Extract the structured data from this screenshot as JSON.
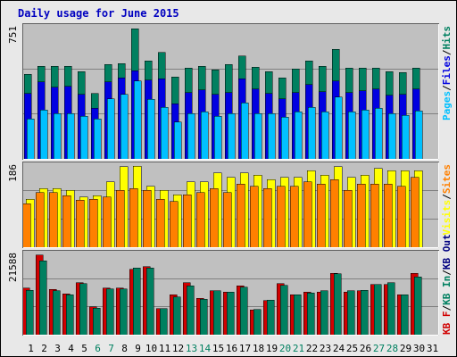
{
  "title": "Daily usage for June 2015",
  "colors": {
    "pages": "#00c0ff",
    "files": "#0000e0",
    "hits": "#008060",
    "visits": "#ffff00",
    "sites": "#ff8000",
    "kb_in": "#008060",
    "kb_out": "#d00000",
    "weekend_label": "#008060",
    "weekday_label": "#000000",
    "legend_sep": "#000000"
  },
  "chart_data": [
    {
      "type": "bar",
      "name": "hits-files-pages",
      "ymax_label": "751",
      "ylim": [
        0,
        751
      ],
      "x": [
        1,
        2,
        3,
        4,
        5,
        6,
        7,
        8,
        9,
        10,
        11,
        12,
        13,
        14,
        15,
        16,
        17,
        18,
        19,
        20,
        21,
        22,
        23,
        24,
        25,
        26,
        27,
        28,
        29,
        30,
        31
      ],
      "series": [
        {
          "name": "Hits",
          "values": [
            485,
            530,
            530,
            530,
            500,
            375,
            540,
            545,
            745,
            560,
            610,
            470,
            520,
            530,
            510,
            540,
            590,
            525,
            500,
            465,
            515,
            560,
            530,
            627,
            520,
            520,
            520,
            500,
            495,
            520,
            0
          ]
        },
        {
          "name": "Files",
          "values": [
            375,
            440,
            410,
            415,
            370,
            290,
            440,
            465,
            505,
            450,
            460,
            315,
            380,
            395,
            370,
            380,
            460,
            400,
            375,
            345,
            380,
            425,
            385,
            445,
            380,
            390,
            400,
            365,
            370,
            400,
            0
          ]
        },
        {
          "name": "Pages",
          "values": [
            230,
            280,
            260,
            260,
            245,
            230,
            345,
            370,
            445,
            340,
            295,
            210,
            260,
            270,
            245,
            260,
            320,
            260,
            260,
            240,
            270,
            295,
            270,
            355,
            270,
            280,
            290,
            260,
            250,
            275,
            0
          ]
        }
      ],
      "legend": [
        {
          "label": "Pages",
          "color": "#00c0ff"
        },
        {
          "label": "Files",
          "color": "#0000e0"
        },
        {
          "label": "Hits",
          "color": "#008060"
        }
      ]
    },
    {
      "type": "bar",
      "name": "visits-sites",
      "ymax_label": "186",
      "ylim": [
        0,
        186
      ],
      "x": [
        1,
        2,
        3,
        4,
        5,
        6,
        7,
        8,
        9,
        10,
        11,
        12,
        13,
        14,
        15,
        16,
        17,
        18,
        19,
        20,
        21,
        22,
        23,
        24,
        25,
        26,
        27,
        28,
        29,
        30,
        31
      ],
      "series": [
        {
          "name": "Visits",
          "values": [
            110,
            135,
            135,
            130,
            115,
            118,
            150,
            185,
            186,
            140,
            130,
            120,
            150,
            150,
            170,
            160,
            170,
            165,
            155,
            160,
            160,
            175,
            165,
            185,
            160,
            165,
            180,
            175,
            175,
            175,
            0
          ]
        },
        {
          "name": "Sites",
          "values": [
            100,
            125,
            125,
            118,
            108,
            110,
            115,
            130,
            135,
            130,
            110,
            105,
            120,
            125,
            135,
            125,
            145,
            140,
            135,
            140,
            140,
            150,
            145,
            155,
            130,
            145,
            145,
            145,
            140,
            160,
            0
          ]
        }
      ],
      "legend": [
        {
          "label": "Visits",
          "color": "#ffff00"
        },
        {
          "label": "Sites",
          "color": "#ff8000"
        }
      ]
    },
    {
      "type": "bar",
      "name": "kbf-kbin-kbout",
      "ymax_label": "21588",
      "ylim": [
        0,
        21588
      ],
      "x": [
        1,
        2,
        3,
        4,
        5,
        6,
        7,
        8,
        9,
        10,
        11,
        12,
        13,
        14,
        15,
        16,
        17,
        18,
        19,
        20,
        21,
        22,
        23,
        24,
        25,
        26,
        27,
        28,
        29,
        30,
        31
      ],
      "series": [
        {
          "name": "KB F",
          "values": [
            12500,
            21400,
            12200,
            11000,
            14000,
            7500,
            12500,
            12500,
            17600,
            18300,
            7000,
            10800,
            14000,
            9800,
            11800,
            11500,
            13200,
            6700,
            9200,
            13800,
            10800,
            11500,
            11500,
            16500,
            11500,
            11800,
            13500,
            13500,
            10800,
            16500,
            0
          ]
        },
        {
          "name": "KB In",
          "values": [
            12000,
            19900,
            11800,
            10800,
            13700,
            7200,
            12300,
            12300,
            17900,
            18000,
            7000,
            10200,
            13200,
            9500,
            11800,
            11500,
            12800,
            6800,
            9300,
            13300,
            10800,
            11200,
            11800,
            16400,
            11800,
            12000,
            13500,
            14000,
            10800,
            15600,
            0
          ]
        },
        {
          "name": "KB Out",
          "values": [
            0,
            0,
            0,
            0,
            0,
            0,
            0,
            0,
            0,
            0,
            0,
            0,
            0,
            0,
            0,
            0,
            0,
            0,
            0,
            0,
            0,
            0,
            0,
            0,
            0,
            0,
            0,
            0,
            0,
            0,
            0
          ]
        }
      ],
      "legend": [
        {
          "label": "KB F",
          "color": "#d00000"
        },
        {
          "label": "KB In",
          "color": "#008060"
        },
        {
          "label": "KB Out",
          "color": "#000080"
        }
      ]
    }
  ],
  "day_labels": [
    "1",
    "2",
    "3",
    "4",
    "5",
    "6",
    "7",
    "8",
    "9",
    "10",
    "11",
    "12",
    "13",
    "14",
    "15",
    "16",
    "17",
    "18",
    "19",
    "20",
    "21",
    "22",
    "23",
    "24",
    "25",
    "26",
    "27",
    "28",
    "29",
    "30",
    "31"
  ],
  "weekend_days": [
    6,
    7,
    13,
    14,
    20,
    21,
    27,
    28
  ]
}
